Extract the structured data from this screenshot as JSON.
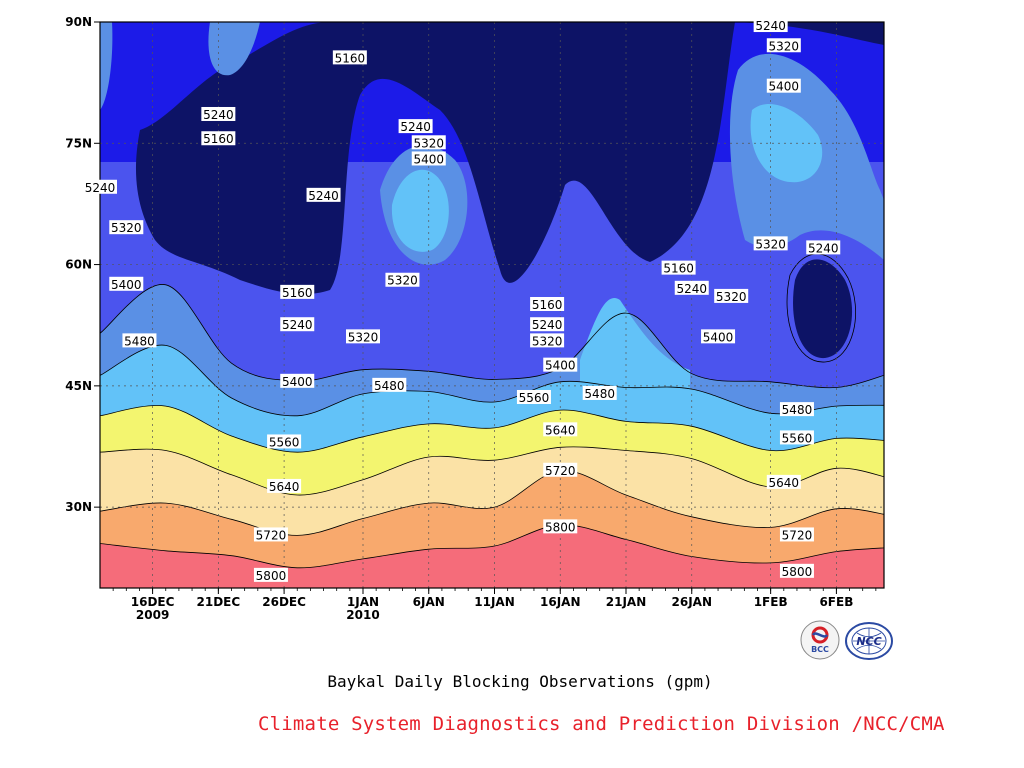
{
  "chart_data": {
    "type": "heatmap",
    "title": "Baykal Daily Blocking Observations (gpm)",
    "contour_levels": [
      5160,
      5240,
      5320,
      5400,
      5480,
      5560,
      5640,
      5720,
      5800
    ],
    "fill_colors": [
      "#0d1366",
      "#1c1be8",
      "#4b54ee",
      "#5a90e5",
      "#62c2f8",
      "#f3f56f",
      "#fbe2a6",
      "#f8a96d",
      "#f77a47",
      "#f56c7a"
    ],
    "x_ticks": [
      {
        "label": "16DEC",
        "sublabel": "2009",
        "date": "2009-12-16"
      },
      {
        "label": "21DEC",
        "sublabel": "",
        "date": "2009-12-21"
      },
      {
        "label": "26DEC",
        "sublabel": "",
        "date": "2009-12-26"
      },
      {
        "label": "1JAN",
        "sublabel": "2010",
        "date": "2010-01-01"
      },
      {
        "label": "6JAN",
        "sublabel": "",
        "date": "2010-01-06"
      },
      {
        "label": "11JAN",
        "sublabel": "",
        "date": "2010-01-11"
      },
      {
        "label": "16JAN",
        "sublabel": "",
        "date": "2010-01-16"
      },
      {
        "label": "21JAN",
        "sublabel": "",
        "date": "2010-01-21"
      },
      {
        "label": "26JAN",
        "sublabel": "",
        "date": "2010-01-26"
      },
      {
        "label": "1FEB",
        "sublabel": "",
        "date": "2010-02-01"
      },
      {
        "label": "6FEB",
        "sublabel": "",
        "date": "2010-02-06"
      }
    ],
    "y_ticks": [
      "90N",
      "75N",
      "60N",
      "45N",
      "30N"
    ],
    "y_values": [
      90,
      75,
      60,
      45,
      30
    ],
    "ylim": [
      20,
      90
    ],
    "xlim": [
      "2009-12-12",
      "2010-02-10"
    ],
    "grid": true,
    "boundaries": [
      {
        "level": 5720,
        "x": [
          "2009-12-12",
          "2009-12-17",
          "2009-12-22",
          "2009-12-27",
          "2010-01-01",
          "2010-01-06",
          "2010-01-11",
          "2010-01-16",
          "2010-01-21",
          "2010-01-26",
          "2010-02-01",
          "2010-02-06",
          "2010-02-10"
        ],
        "lat": [
          25.5,
          24.6,
          24.0,
          22.5,
          23.6,
          24.8,
          25.2,
          27.8,
          26.0,
          23.9,
          23.1,
          24.5,
          25.0
        ]
      },
      {
        "level": 5640,
        "x": [
          "2009-12-12",
          "2009-12-17",
          "2009-12-22",
          "2009-12-27",
          "2010-01-01",
          "2010-01-06",
          "2010-01-11",
          "2010-01-16",
          "2010-01-21",
          "2010-01-26",
          "2010-02-01",
          "2010-02-06",
          "2010-02-10"
        ],
        "lat": [
          29.5,
          30.5,
          28.5,
          26.5,
          28.6,
          30.5,
          30.0,
          34.5,
          31.5,
          28.8,
          27.5,
          29.8,
          29.0
        ]
      },
      {
        "level": 5560,
        "x": [
          "2009-12-12",
          "2009-12-17",
          "2009-12-22",
          "2009-12-27",
          "2010-01-01",
          "2010-01-06",
          "2010-01-11",
          "2010-01-16",
          "2010-01-21",
          "2010-01-26",
          "2010-02-01",
          "2010-02-06",
          "2010-02-10"
        ],
        "lat": [
          36.8,
          37.0,
          34.0,
          31.5,
          33.4,
          36.2,
          35.8,
          37.4,
          37.0,
          36.0,
          32.5,
          34.8,
          33.6
        ]
      },
      {
        "level": 5480,
        "x": [
          "2009-12-12",
          "2009-12-17",
          "2009-12-22",
          "2009-12-27",
          "2010-01-01",
          "2010-01-06",
          "2010-01-11",
          "2010-01-16",
          "2010-01-21",
          "2010-01-26",
          "2010-02-01",
          "2010-02-06",
          "2010-02-10"
        ],
        "lat": [
          41.3,
          42.5,
          38.8,
          36.8,
          38.7,
          40.3,
          39.8,
          42.0,
          40.6,
          40.0,
          37.0,
          38.5,
          38.2
        ]
      },
      {
        "level": 5400,
        "x": [
          "2009-12-12",
          "2009-12-17",
          "2009-12-22",
          "2009-12-27",
          "2010-01-01",
          "2010-01-06",
          "2010-01-11",
          "2010-01-16",
          "2010-01-21",
          "2010-01-26",
          "2010-02-01",
          "2010-02-06",
          "2010-02-10"
        ],
        "lat": [
          46.3,
          50.0,
          43.5,
          41.3,
          44.0,
          44.3,
          43.0,
          45.5,
          44.8,
          44.6,
          41.6,
          42.5,
          42.6
        ]
      },
      {
        "level": 5320,
        "x": [
          "2009-12-12",
          "2009-12-17",
          "2009-12-22",
          "2009-12-27",
          "2010-01-01",
          "2010-01-06",
          "2010-01-11",
          "2010-01-16",
          "2010-01-21",
          "2010-01-26",
          "2010-02-01",
          "2010-02-06",
          "2010-02-10"
        ],
        "lat": [
          51.5,
          57.5,
          47.8,
          45.6,
          47.0,
          46.8,
          45.8,
          47.2,
          54.0,
          46.5,
          45.5,
          44.8,
          46.5
        ]
      }
    ],
    "contour_labels": [
      {
        "text": "5240",
        "date": "2009-12-12",
        "lat": 69.5
      },
      {
        "text": "5320",
        "date": "2009-12-14",
        "lat": 64.5
      },
      {
        "text": "5400",
        "date": "2009-12-14",
        "lat": 57.5
      },
      {
        "text": "5480",
        "date": "2009-12-15",
        "lat": 50.5
      },
      {
        "text": "5240",
        "date": "2009-12-21",
        "lat": 78.5
      },
      {
        "text": "5160",
        "date": "2009-12-21",
        "lat": 75.5
      },
      {
        "text": "5160",
        "date": "2009-12-27",
        "lat": 56.5
      },
      {
        "text": "5240",
        "date": "2009-12-27",
        "lat": 52.5
      },
      {
        "text": "5400",
        "date": "2009-12-27",
        "lat": 45.5
      },
      {
        "text": "5560",
        "date": "2009-12-26",
        "lat": 38.0
      },
      {
        "text": "5640",
        "date": "2009-12-26",
        "lat": 32.5
      },
      {
        "text": "5720",
        "date": "2009-12-25",
        "lat": 26.5
      },
      {
        "text": "5800",
        "date": "2009-12-25",
        "lat": 21.5
      },
      {
        "text": "5240",
        "date": "2009-12-29",
        "lat": 68.5
      },
      {
        "text": "5160",
        "date": "2009-12-31",
        "lat": 85.5
      },
      {
        "text": "5320",
        "date": "2010-01-01",
        "lat": 51.0
      },
      {
        "text": "5480",
        "date": "2010-01-03",
        "lat": 45.0
      },
      {
        "text": "5240",
        "date": "2010-01-05",
        "lat": 77.0
      },
      {
        "text": "5320",
        "date": "2010-01-06",
        "lat": 75.0
      },
      {
        "text": "5400",
        "date": "2010-01-06",
        "lat": 73.0
      },
      {
        "text": "5320",
        "date": "2010-01-04",
        "lat": 58.0
      },
      {
        "text": "5160",
        "date": "2010-01-15",
        "lat": 55.0
      },
      {
        "text": "5240",
        "date": "2010-01-15",
        "lat": 52.5
      },
      {
        "text": "5320",
        "date": "2010-01-15",
        "lat": 50.5
      },
      {
        "text": "5400",
        "date": "2010-01-16",
        "lat": 47.5
      },
      {
        "text": "5480",
        "date": "2010-01-19",
        "lat": 44.0
      },
      {
        "text": "5560",
        "date": "2010-01-14",
        "lat": 43.5
      },
      {
        "text": "5640",
        "date": "2010-01-16",
        "lat": 39.5
      },
      {
        "text": "5720",
        "date": "2010-01-16",
        "lat": 34.5
      },
      {
        "text": "5800",
        "date": "2010-01-16",
        "lat": 27.5
      },
      {
        "text": "5160",
        "date": "2010-01-25",
        "lat": 59.5
      },
      {
        "text": "5240",
        "date": "2010-01-26",
        "lat": 57.0
      },
      {
        "text": "5320",
        "date": "2010-01-29",
        "lat": 56.0
      },
      {
        "text": "5400",
        "date": "2010-01-28",
        "lat": 51.0
      },
      {
        "text": "5240",
        "date": "2010-02-01",
        "lat": 89.5
      },
      {
        "text": "5320",
        "date": "2010-02-02",
        "lat": 87.0
      },
      {
        "text": "5400",
        "date": "2010-02-02",
        "lat": 82.0
      },
      {
        "text": "5320",
        "date": "2010-02-01",
        "lat": 62.5
      },
      {
        "text": "5240",
        "date": "2010-02-05",
        "lat": 62.0
      },
      {
        "text": "5480",
        "date": "2010-02-03",
        "lat": 42.0
      },
      {
        "text": "5560",
        "date": "2010-02-03",
        "lat": 38.5
      },
      {
        "text": "5640",
        "date": "2010-02-02",
        "lat": 33.0
      },
      {
        "text": "5720",
        "date": "2010-02-03",
        "lat": 26.5
      },
      {
        "text": "5800",
        "date": "2010-02-03",
        "lat": 22.0
      }
    ]
  },
  "credit": "Climate System Diagnostics and Prediction Division /NCC/CMA",
  "logos": {
    "bcc": "BCC",
    "ncc": "NCC"
  }
}
